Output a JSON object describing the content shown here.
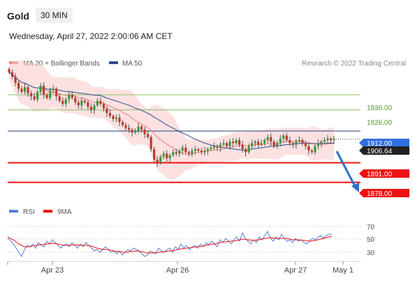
{
  "header": {
    "instrument": "Gold",
    "timeframe": "30 MIN",
    "datetime": "Wednesday, April 27, 2022 2:00:06 AM CET"
  },
  "main_legend": {
    "items": [
      {
        "label": "MA 20 + Bollinger Bands",
        "color": "#f08080"
      },
      {
        "label": "MA 50",
        "color": "#2a4d8f"
      }
    ],
    "credit": "Research © 2022 Trading Central"
  },
  "price_levels": {
    "green": [
      {
        "label": "1936.00",
        "value": 1936.0,
        "color": "#8cc06a"
      },
      {
        "label": "1926.00",
        "value": 1926.0,
        "color": "#8cc06a"
      }
    ],
    "pivot": {
      "label": "1912.00",
      "value": 1912.0,
      "color": "#2f6fe0"
    },
    "current": {
      "label": "1906.64",
      "value": 1906.64,
      "color": "#222222"
    },
    "red": [
      {
        "label": "1891.00",
        "value": 1891.0,
        "color": "#ee1111"
      },
      {
        "label": "1878.00",
        "value": 1878.0,
        "color": "#ee1111"
      }
    ]
  },
  "rsi_legend": {
    "items": [
      {
        "label": "RSI",
        "color": "#5b7fd6"
      },
      {
        "label": "9MA",
        "color": "#ee1111"
      }
    ]
  },
  "rsi_axis": {
    "ticks": [
      {
        "label": "70",
        "value": 70
      },
      {
        "label": "50",
        "value": 50
      },
      {
        "label": "30",
        "value": 30
      }
    ]
  },
  "x_axis": {
    "ticks": [
      {
        "label": "Apr 23"
      },
      {
        "label": "Apr 26"
      },
      {
        "label": "Apr 27"
      },
      {
        "label": "May 1"
      }
    ]
  },
  "chart_data": {
    "type": "candlestick",
    "y_range": [
      1870,
      1960
    ],
    "series": [
      {
        "name": "Price",
        "kind": "candles"
      },
      {
        "name": "MA 20 + Bollinger Bands",
        "kind": "line+band"
      },
      {
        "name": "MA 50",
        "kind": "line"
      }
    ],
    "candles_close": [
      1951,
      1948,
      1944,
      1940,
      1938,
      1941,
      1937,
      1935,
      1933,
      1938,
      1942,
      1936,
      1934,
      1939,
      1940,
      1935,
      1932,
      1930,
      1933,
      1936,
      1934,
      1931,
      1929,
      1932,
      1931,
      1928,
      1926,
      1929,
      1932,
      1930,
      1927,
      1924,
      1922,
      1920,
      1921,
      1918,
      1916,
      1914,
      1913,
      1911,
      1912,
      1915,
      1913,
      1910,
      1908,
      1900,
      1893,
      1891,
      1895,
      1897,
      1894,
      1896,
      1898,
      1897,
      1899,
      1901,
      1898,
      1897,
      1899,
      1900,
      1899,
      1898,
      1899,
      1900,
      1901,
      1902,
      1901,
      1903,
      1904,
      1902,
      1905,
      1904,
      1906,
      1903,
      1900,
      1898,
      1902,
      1904,
      1905,
      1903,
      1904,
      1906,
      1908,
      1905,
      1902,
      1904,
      1907,
      1909,
      1906,
      1904,
      1903,
      1905,
      1906,
      1904,
      1902,
      1899,
      1898,
      1902,
      1904,
      1905,
      1906,
      1907,
      1906,
      1907
    ]
  }
}
